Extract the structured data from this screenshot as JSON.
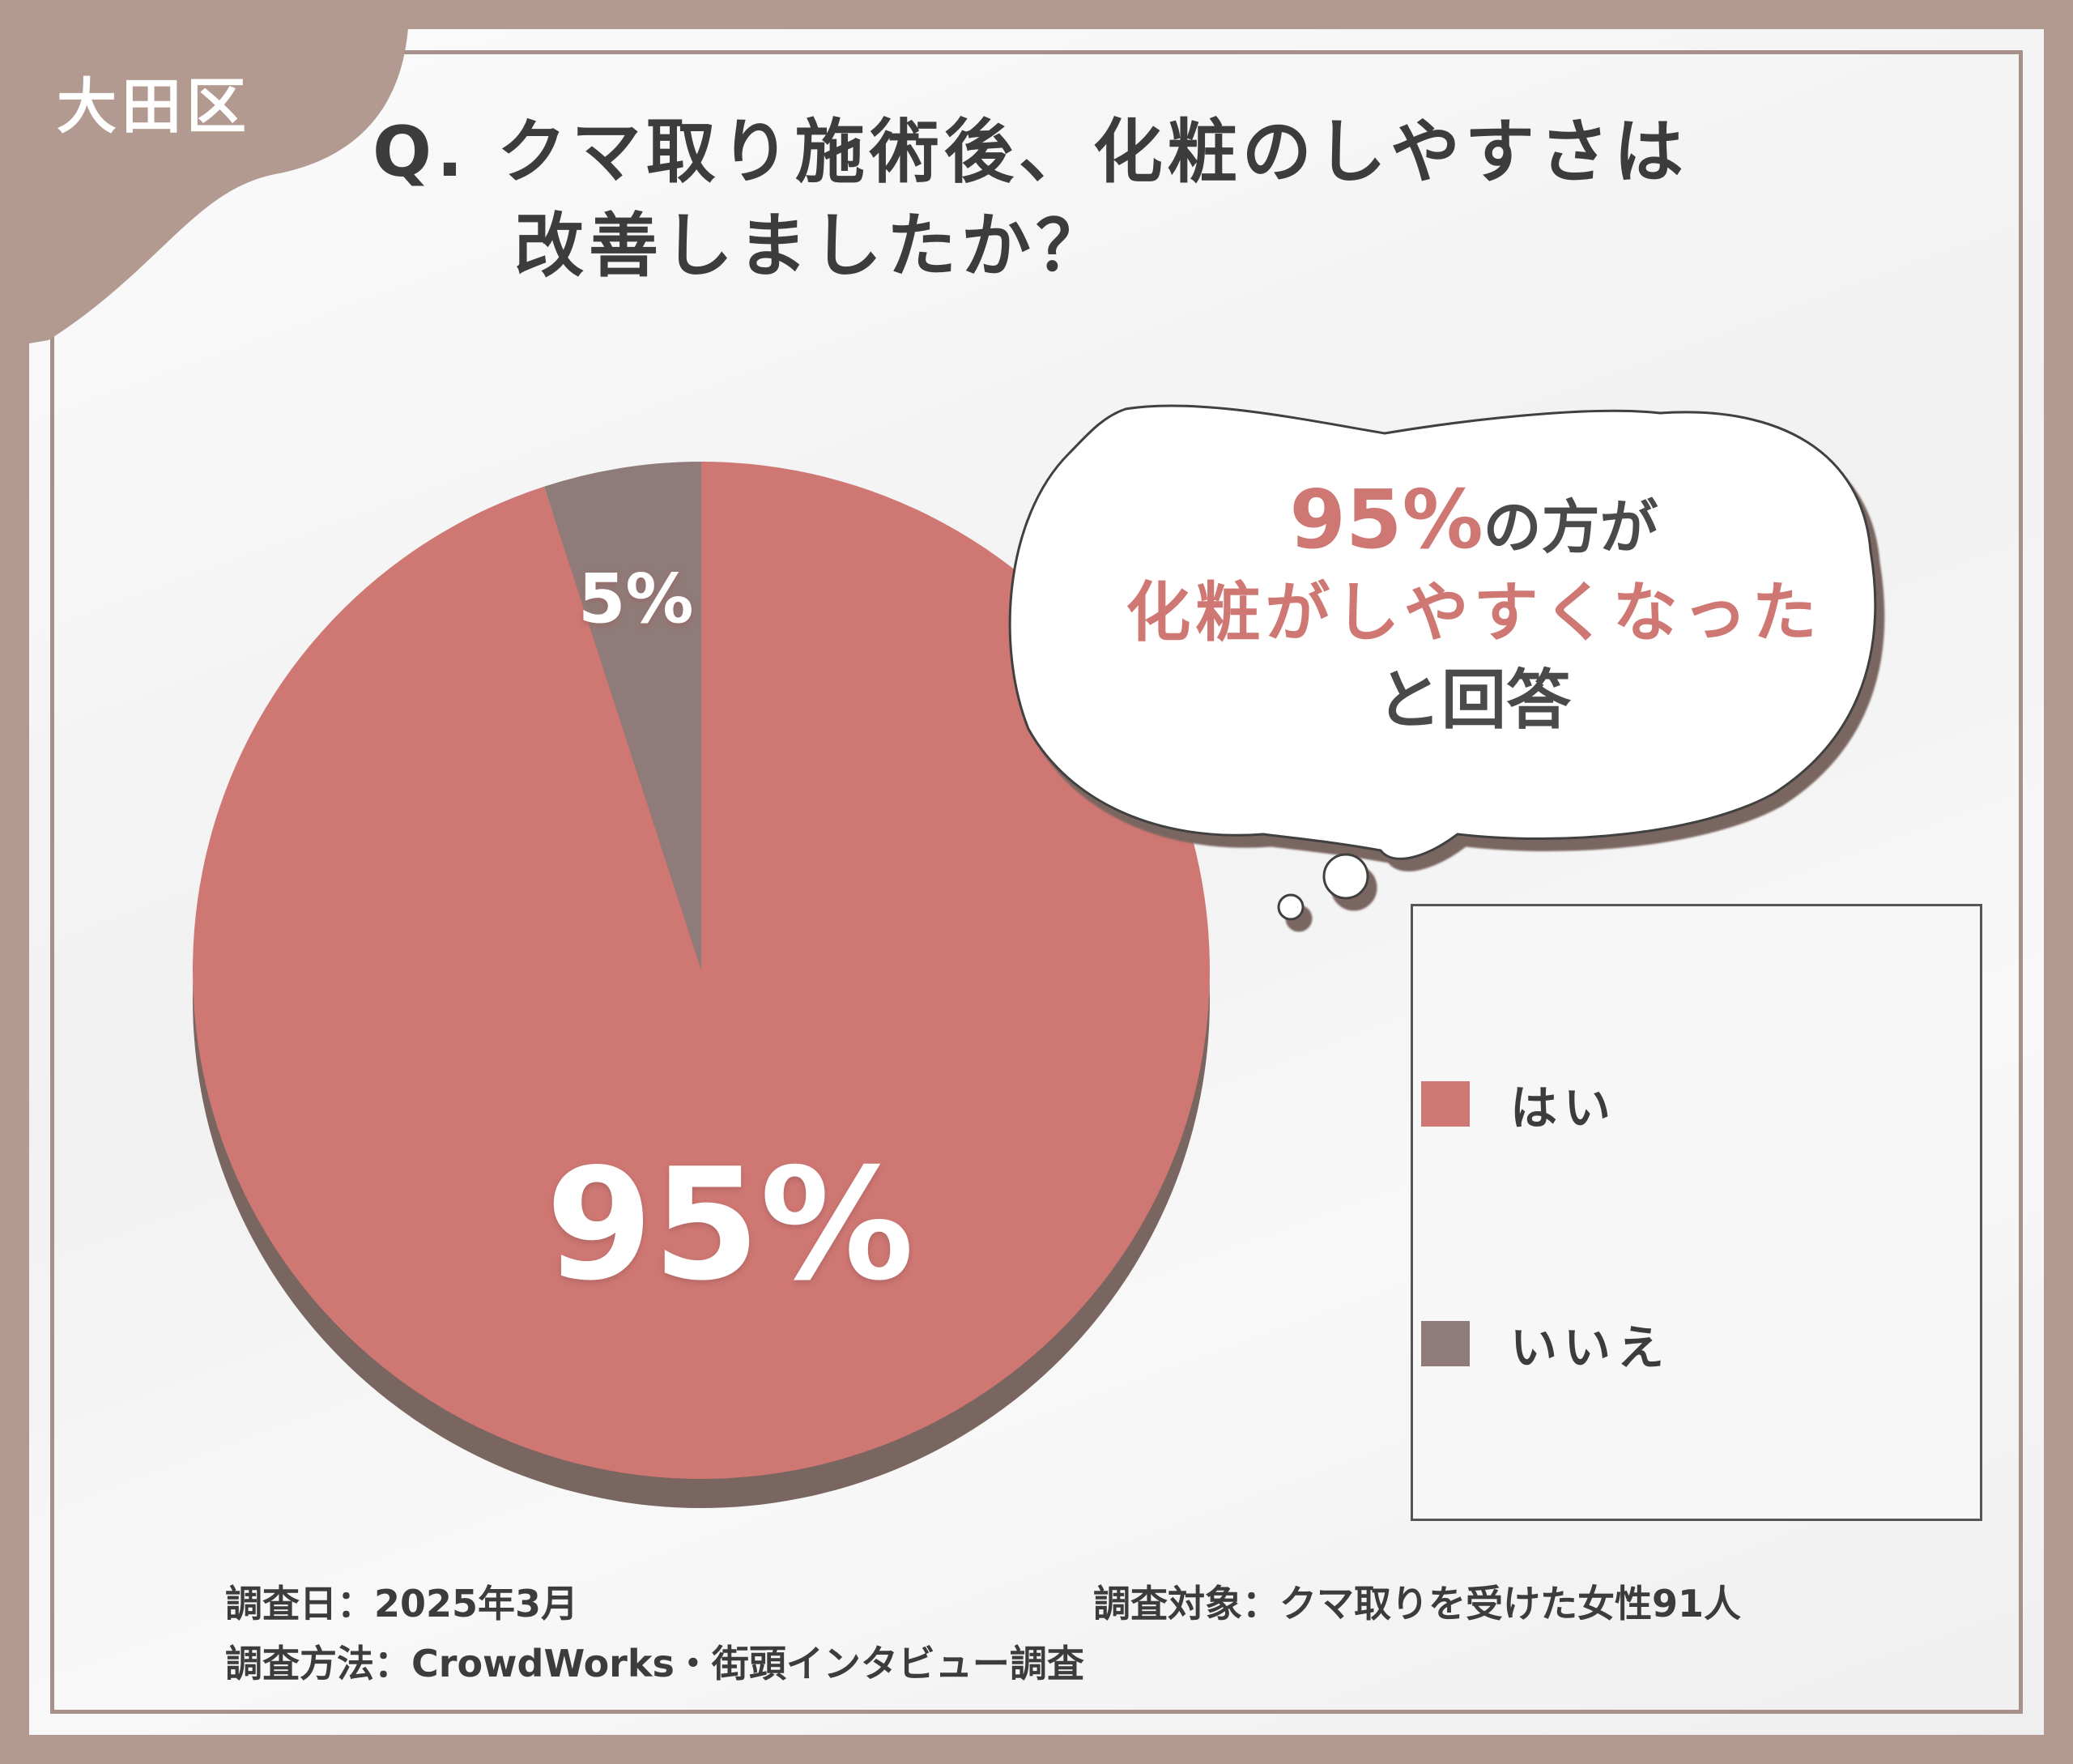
{
  "badge": {
    "label": "大田区"
  },
  "question": {
    "line1": "Q. クマ取り施術後、化粧のしやすさは",
    "line2": "改善しましたか？"
  },
  "colors": {
    "yes": "#cf7773",
    "no": "#8f7b79",
    "shadow": "#7a6661",
    "frame": "#b39a91"
  },
  "chart_data": {
    "type": "pie",
    "categories": [
      "はい",
      "いいえ"
    ],
    "values": [
      95,
      5
    ],
    "data_labels": [
      "95%",
      "5%"
    ],
    "legend_placement": "right"
  },
  "bubble": {
    "pct": "95%",
    "line1_rest": "の方が",
    "line2": "化粧がしやすくなった",
    "line3": "と回答"
  },
  "footer": {
    "date": "調査日：2025年3月",
    "target": "調査対象：クマ取りを受けた女性91人",
    "method": "調査方法：CrowdWorks・街頭インタビュー調査"
  }
}
